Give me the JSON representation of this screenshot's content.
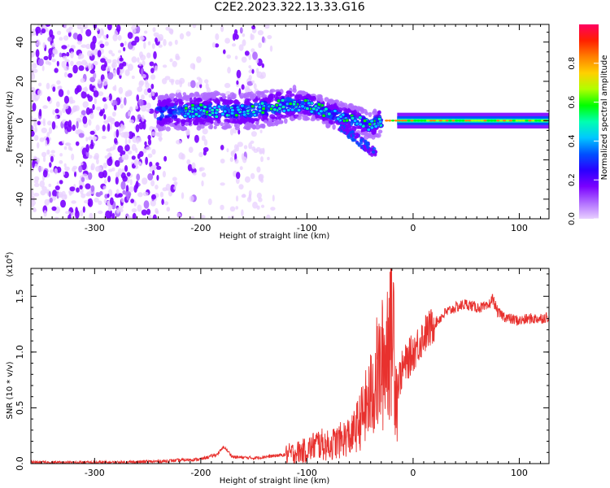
{
  "title": "C2E2.2023.322.13.33.G16",
  "chart_data": [
    {
      "type": "heatmap",
      "title": "",
      "xlabel": "Height of straight line (km)",
      "ylabel": "Frequency (Hz)",
      "xlim": [
        -360,
        128
      ],
      "ylim": [
        -50,
        49
      ],
      "x_ticks": [
        -300,
        -200,
        -100,
        0,
        100
      ],
      "y_ticks": [
        -40,
        -20,
        0,
        20,
        40
      ],
      "colorbar": {
        "label": "Normalized spectral amplitude",
        "range": [
          0,
          1
        ],
        "ticks": [
          "0.0",
          "0.2",
          "0.4",
          "0.6",
          "0.8"
        ],
        "colormap": [
          "#e8d0ff",
          "#b06cff",
          "#7a00ff",
          "#2a00ff",
          "#0050ff",
          "#00c8ff",
          "#00ffb0",
          "#00ff00",
          "#b0ff00",
          "#ffd000",
          "#ff8000",
          "#ff2000",
          "#ff0060"
        ]
      },
      "features": [
        {
          "name": "",
          "x_range": [
            -360,
            -130
          ],
          "freq_range": [
            -50,
            49
          ],
          "note": ""
        },
        {
          "name": "",
          "x": [
            -240,
            -200,
            -150,
            -120,
            -100,
            -80,
            -60,
            -40,
            -30,
            0,
            128
          ],
          "freq": [
            4,
            5,
            5,
            8,
            8,
            4,
            1,
            -2,
            0,
            1,
            0
          ]
        }
      ]
    },
    {
      "type": "line",
      "title": "",
      "xlabel": "Height of straight line (km)",
      "ylabel": "SNR (10 * v/v)",
      "y_multiplier_label": "(x10",
      "y_multiplier_exp": "4",
      "y_multiplier_close": ")",
      "xlim": [
        -360,
        128
      ],
      "ylim": [
        0,
        1.75
      ],
      "x_ticks": [
        -300,
        -200,
        -100,
        0,
        100
      ],
      "y_ticks": [
        "0.0",
        "0.5",
        "1.0",
        "1.5"
      ],
      "series": [
        {
          "name": "",
          "color": "#e8312e",
          "x": [
            -360,
            -320,
            -280,
            -240,
            -200,
            -185,
            -178,
            -170,
            -150,
            -120,
            -100,
            -90,
            -80,
            -70,
            -60,
            -50,
            -40,
            -35,
            -30,
            -25,
            -22,
            -19,
            -17,
            -15,
            -10,
            0,
            10,
            20,
            30,
            40,
            50,
            60,
            70,
            75,
            80,
            90,
            100,
            110,
            120,
            128
          ],
          "y": [
            0.01,
            0.01,
            0.01,
            0.02,
            0.04,
            0.08,
            0.15,
            0.06,
            0.05,
            0.08,
            0.12,
            0.18,
            0.16,
            0.2,
            0.25,
            0.45,
            0.7,
            0.9,
            1.0,
            1.2,
            1.5,
            1.6,
            1.0,
            0.7,
            0.85,
            1.0,
            1.15,
            1.25,
            1.35,
            1.4,
            1.43,
            1.4,
            1.4,
            1.48,
            1.35,
            1.3,
            1.28,
            1.3,
            1.3,
            1.32
          ]
        }
      ]
    }
  ]
}
